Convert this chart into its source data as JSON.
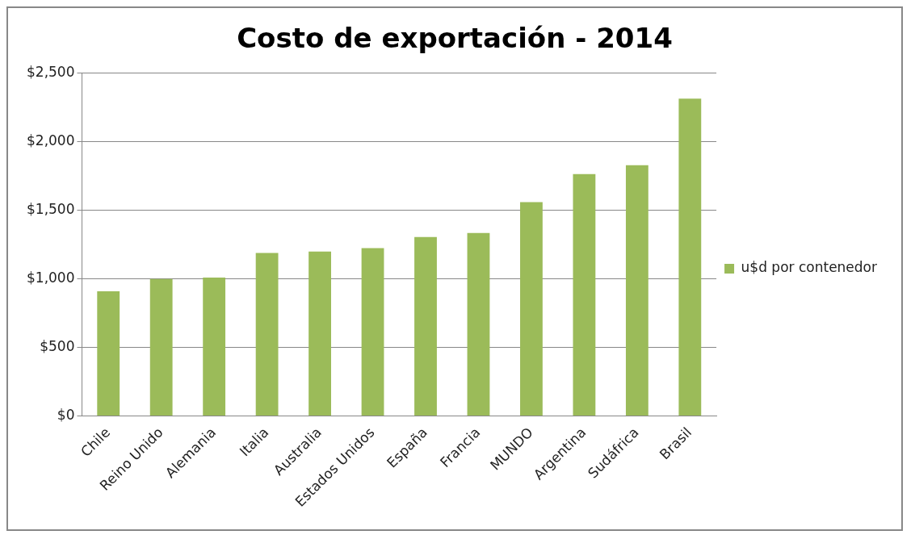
{
  "chart_data": {
    "type": "bar",
    "title": "Costo de exportación - 2014",
    "categories": [
      "Chile",
      "Reino Unido",
      "Alemania",
      "Italia",
      "Australia",
      "Estados Unidos",
      "España",
      "Francia",
      "MUNDO",
      "Argentina",
      "Sudáfrica",
      "Brasil"
    ],
    "series": [
      {
        "name": "u$d por contenedor",
        "color": "#9bbb59",
        "values": [
          910,
          1000,
          1010,
          1190,
          1200,
          1225,
          1305,
          1335,
          1560,
          1765,
          1830,
          2315
        ]
      }
    ],
    "ylim": [
      0,
      2500
    ],
    "yticks": [
      {
        "value": 0,
        "label": "$0"
      },
      {
        "value": 500,
        "label": "$500"
      },
      {
        "value": 1000,
        "label": "$1,000"
      },
      {
        "value": 1500,
        "label": "$1,500"
      },
      {
        "value": 2000,
        "label": "$2,000"
      },
      {
        "value": 2500,
        "label": "$2,500"
      }
    ],
    "grid": "y",
    "legend": "right"
  }
}
